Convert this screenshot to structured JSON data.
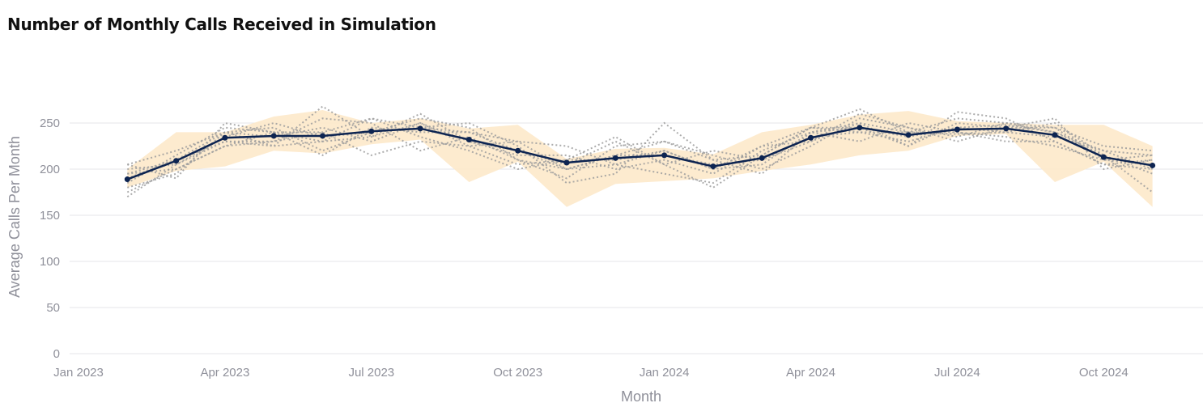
{
  "chart_data": {
    "type": "line",
    "title": "Number of Monthly Calls Received in Simulation",
    "xlabel": "Month",
    "ylabel": "Average Calls Per Month",
    "ylim": [
      0,
      275
    ],
    "yticks": [
      0,
      50,
      100,
      150,
      200,
      250
    ],
    "xticks": [
      "Jan 2023",
      "Apr 2023",
      "Jul 2023",
      "Oct 2023",
      "Jan 2024",
      "Apr 2024",
      "Jul 2024",
      "Oct 2024"
    ],
    "grid": true,
    "x": [
      "2023-02",
      "2023-03",
      "2023-04",
      "2023-05",
      "2023-06",
      "2023-07",
      "2023-08",
      "2023-09",
      "2023-10",
      "2023-11",
      "2023-12",
      "2024-01",
      "2024-02",
      "2024-03",
      "2024-04",
      "2024-05",
      "2024-06",
      "2024-07",
      "2024-08",
      "2024-09",
      "2024-10",
      "2024-11"
    ],
    "series": [
      {
        "role": "mean",
        "color": "#0d2451",
        "values": [
          189,
          209,
          234,
          236,
          236,
          241,
          244,
          232,
          220,
          207,
          212,
          215,
          203,
          212,
          234,
          245,
          237,
          243,
          244,
          237,
          213,
          204
        ]
      }
    ],
    "band": {
      "color": "#fde7c7",
      "lower": [
        180,
        198,
        203,
        220,
        217,
        227,
        232,
        186,
        208,
        159,
        184,
        187,
        190,
        198,
        205,
        215,
        220,
        236,
        238,
        186,
        208,
        159
      ],
      "upper": [
        200,
        240,
        240,
        257,
        264,
        250,
        255,
        244,
        248,
        211,
        222,
        223,
        216,
        240,
        248,
        259,
        263,
        252,
        250,
        248,
        248,
        225
      ]
    },
    "runs": {
      "color": "#9d9d9d",
      "values": [
        [
          205,
          190,
          250,
          240,
          230,
          255,
          245,
          240,
          230,
          200,
          215,
          230,
          210,
          215,
          245,
          265,
          240,
          255,
          250,
          245,
          210,
          215
        ],
        [
          170,
          205,
          230,
          225,
          268,
          235,
          260,
          230,
          215,
          215,
          200,
          210,
          195,
          225,
          245,
          240,
          240,
          238,
          240,
          250,
          215,
          175
        ],
        [
          185,
          215,
          245,
          240,
          215,
          245,
          240,
          240,
          220,
          205,
          230,
          205,
          220,
          210,
          230,
          250,
          225,
          262,
          255,
          230,
          205,
          210
        ],
        [
          195,
          200,
          225,
          230,
          240,
          215,
          230,
          225,
          205,
          210,
          210,
          220,
          200,
          205,
          240,
          245,
          235,
          245,
          248,
          240,
          220,
          200
        ],
        [
          200,
          205,
          235,
          250,
          235,
          240,
          255,
          245,
          210,
          190,
          225,
          230,
          215,
          200,
          225,
          255,
          245,
          230,
          245,
          255,
          200,
          210
        ],
        [
          180,
          195,
          240,
          235,
          245,
          230,
          250,
          225,
          230,
          225,
          205,
          195,
          185,
          220,
          240,
          230,
          250,
          240,
          235,
          225,
          210,
          205
        ],
        [
          190,
          210,
          230,
          230,
          255,
          250,
          220,
          235,
          210,
          200,
          215,
          215,
          205,
          210,
          235,
          240,
          230,
          245,
          240,
          235,
          220,
          215
        ],
        [
          205,
          220,
          240,
          245,
          220,
          240,
          245,
          250,
          225,
          185,
          195,
          250,
          210,
          195,
          240,
          250,
          240,
          240,
          230,
          230,
          205,
          200
        ],
        [
          175,
          200,
          225,
          240,
          240,
          255,
          235,
          220,
          200,
          210,
          235,
          205,
          180,
          215,
          245,
          245,
          225,
          250,
          245,
          245,
          225,
          220
        ],
        [
          195,
          210,
          240,
          225,
          230,
          235,
          250,
          230,
          220,
          200,
          205,
          220,
          200,
          225,
          230,
          260,
          245,
          235,
          250,
          240,
          215,
          195
        ]
      ]
    }
  }
}
